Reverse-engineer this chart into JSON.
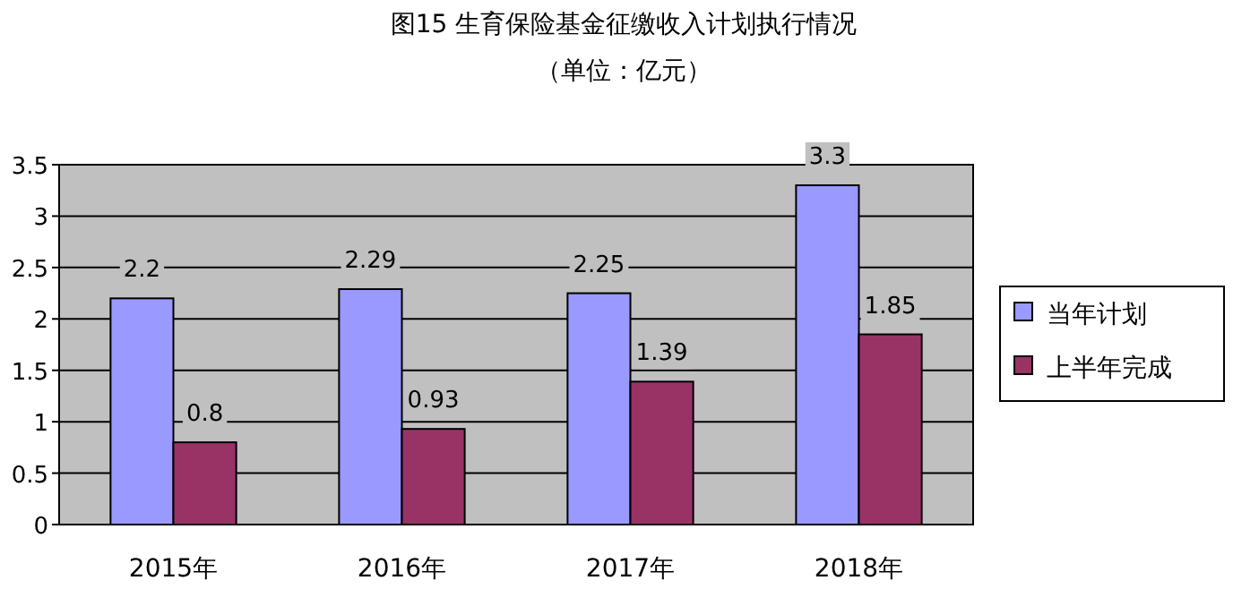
{
  "chart_data": {
    "type": "bar",
    "title": "图15 生育保险基金征缴收入计划执行情况",
    "subtitle": "（单位：亿元）",
    "categories": [
      "2015年",
      "2016年",
      "2017年",
      "2018年"
    ],
    "series": [
      {
        "name": "当年计划",
        "color": "#9999ff",
        "values": [
          2.2,
          2.29,
          2.25,
          3.3
        ]
      },
      {
        "name": "上半年完成",
        "color": "#993366",
        "values": [
          0.8,
          0.93,
          1.39,
          1.85
        ]
      }
    ],
    "ylim": [
      0,
      3.5
    ],
    "yticks": [
      0,
      0.5,
      1,
      1.5,
      2,
      2.5,
      3,
      3.5
    ],
    "grid": "y",
    "legend": "right",
    "data_labels": true
  }
}
